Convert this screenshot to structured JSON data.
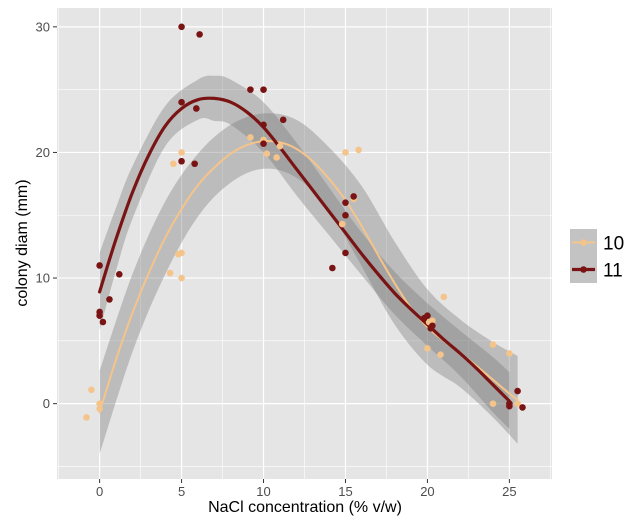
{
  "chart_data": {
    "type": "scatter",
    "title": "",
    "xlabel": "NaCl concentration (% v/w)",
    "ylabel": "colony diam (mm)",
    "xlim": [
      -2.6,
      27.6
    ],
    "ylim": [
      -6,
      31.5
    ],
    "xticks": [
      0,
      5,
      10,
      15,
      20,
      25
    ],
    "yticks": [
      0,
      10,
      20,
      30
    ],
    "grid": true,
    "background": "#e5e5e5",
    "legend_position": "right",
    "series": [
      {
        "name": "10",
        "color": "#f5c48a",
        "points": [
          [
            -0.8,
            -1.1
          ],
          [
            -0.5,
            1.1
          ],
          [
            0,
            0
          ],
          [
            0,
            -0.4
          ],
          [
            4.3,
            10.4
          ],
          [
            4.5,
            19.1
          ],
          [
            4.8,
            11.9
          ],
          [
            5,
            12
          ],
          [
            5,
            10
          ],
          [
            5,
            20
          ],
          [
            9.2,
            21.2
          ],
          [
            10,
            21
          ],
          [
            10.2,
            19.9
          ],
          [
            10.8,
            19.6
          ],
          [
            11,
            20.5
          ],
          [
            14.8,
            14.3
          ],
          [
            15,
            20
          ],
          [
            15.5,
            16.3
          ],
          [
            15.8,
            20.2
          ],
          [
            20,
            4.4
          ],
          [
            20.1,
            6.5
          ],
          [
            20.3,
            6.6
          ],
          [
            20.8,
            3.9
          ],
          [
            21,
            8.5
          ],
          [
            24,
            4.7
          ],
          [
            24,
            0
          ],
          [
            25,
            4
          ],
          [
            25.5,
            0
          ]
        ],
        "fit": [
          [
            0,
            -0.7
          ],
          [
            1,
            3.5
          ],
          [
            2,
            7.2
          ],
          [
            3,
            10.4
          ],
          [
            4,
            13.2
          ],
          [
            5,
            15.5
          ],
          [
            6,
            17.4
          ],
          [
            7,
            18.8
          ],
          [
            8,
            19.9
          ],
          [
            9,
            20.6
          ],
          [
            10,
            20.9
          ],
          [
            11,
            20.8
          ],
          [
            12,
            20.3
          ],
          [
            13,
            19.3
          ],
          [
            14,
            17.9
          ],
          [
            15,
            16.2
          ],
          [
            16,
            14.1
          ],
          [
            17,
            11.8
          ],
          [
            18,
            9.6
          ],
          [
            19,
            7.6
          ],
          [
            20,
            6.1
          ],
          [
            21,
            5
          ],
          [
            22,
            4
          ],
          [
            23,
            3
          ],
          [
            24,
            1.9
          ],
          [
            25,
            0.8
          ],
          [
            25.5,
            0.3
          ]
        ],
        "band_upper": [
          [
            0,
            2.6
          ],
          [
            2,
            10.3
          ],
          [
            4,
            16.1
          ],
          [
            6,
            19.9
          ],
          [
            8,
            22.2
          ],
          [
            10,
            23.1
          ],
          [
            12,
            22.6
          ],
          [
            14,
            20.4
          ],
          [
            16,
            17.3
          ],
          [
            18,
            12.9
          ],
          [
            20,
            9.1
          ],
          [
            22,
            6.7
          ],
          [
            24,
            4.9
          ],
          [
            25.5,
            3.8
          ]
        ],
        "band_lower": [
          [
            25.5,
            -3.2
          ],
          [
            24,
            -1.1
          ],
          [
            22,
            1.3
          ],
          [
            20,
            3.1
          ],
          [
            18,
            6.3
          ],
          [
            16,
            10.9
          ],
          [
            14,
            15.4
          ],
          [
            12,
            18
          ],
          [
            10,
            18.7
          ],
          [
            8,
            17.6
          ],
          [
            6,
            14.9
          ],
          [
            4,
            10.3
          ],
          [
            2,
            4.1
          ],
          [
            0,
            -4
          ]
        ]
      },
      {
        "name": "11",
        "color": "#7a1414",
        "points": [
          [
            0,
            11
          ],
          [
            0,
            7.3
          ],
          [
            0,
            7
          ],
          [
            0.2,
            6.5
          ],
          [
            0.6,
            8.3
          ],
          [
            1.2,
            10.3
          ],
          [
            5,
            30
          ],
          [
            5,
            24
          ],
          [
            5,
            19.3
          ],
          [
            5.8,
            19.1
          ],
          [
            5.9,
            23.5
          ],
          [
            6.1,
            29.4
          ],
          [
            9.2,
            25
          ],
          [
            10,
            25
          ],
          [
            10,
            22.2
          ],
          [
            10,
            20.7
          ],
          [
            11.2,
            22.6
          ],
          [
            14.2,
            10.8
          ],
          [
            15,
            16
          ],
          [
            15,
            15
          ],
          [
            15,
            12
          ],
          [
            15.5,
            16.5
          ],
          [
            19.8,
            6.8
          ],
          [
            20,
            7
          ],
          [
            20.2,
            6
          ],
          [
            20.3,
            6.2
          ],
          [
            25,
            0
          ],
          [
            25,
            -0.2
          ],
          [
            25.5,
            1
          ],
          [
            25.8,
            -0.3
          ]
        ],
        "fit": [
          [
            0,
            8.9
          ],
          [
            1,
            13.1
          ],
          [
            2,
            16.8
          ],
          [
            3,
            19.8
          ],
          [
            4,
            22.1
          ],
          [
            5,
            23.5
          ],
          [
            6,
            24.2
          ],
          [
            7,
            24.3
          ],
          [
            8,
            24
          ],
          [
            9,
            23.2
          ],
          [
            10,
            22
          ],
          [
            11,
            20.4
          ],
          [
            12,
            18.7
          ],
          [
            13,
            17
          ],
          [
            14,
            15.3
          ],
          [
            15,
            13.6
          ],
          [
            16,
            11.9
          ],
          [
            17,
            10.3
          ],
          [
            18,
            8.8
          ],
          [
            19,
            7.5
          ],
          [
            20,
            6.3
          ],
          [
            21,
            5.1
          ],
          [
            22,
            4
          ],
          [
            23,
            2.8
          ],
          [
            24,
            1.5
          ],
          [
            25,
            0.2
          ]
        ],
        "band_upper": [
          [
            0,
            12
          ],
          [
            1,
            15.6
          ],
          [
            2,
            18.9
          ],
          [
            4,
            23.7
          ],
          [
            6,
            25.8
          ],
          [
            7,
            26.1
          ],
          [
            8,
            25.8
          ],
          [
            10,
            24
          ],
          [
            12,
            20.8
          ],
          [
            14,
            17.2
          ],
          [
            16,
            13.6
          ],
          [
            18,
            10.5
          ],
          [
            20,
            8
          ],
          [
            22,
            5.8
          ],
          [
            24,
            3.7
          ],
          [
            25,
            2.5
          ]
        ],
        "band_lower": [
          [
            25,
            -2
          ],
          [
            24,
            -0.7
          ],
          [
            22,
            2.2
          ],
          [
            20,
            4.6
          ],
          [
            18,
            7.1
          ],
          [
            16,
            10.2
          ],
          [
            14,
            13.4
          ],
          [
            12,
            16.6
          ],
          [
            10,
            20
          ],
          [
            8,
            22.2
          ],
          [
            7,
            22.5
          ],
          [
            6,
            22.6
          ],
          [
            4,
            20.5
          ],
          [
            2,
            14.7
          ],
          [
            1,
            10.6
          ],
          [
            0,
            5.8
          ]
        ]
      }
    ]
  }
}
